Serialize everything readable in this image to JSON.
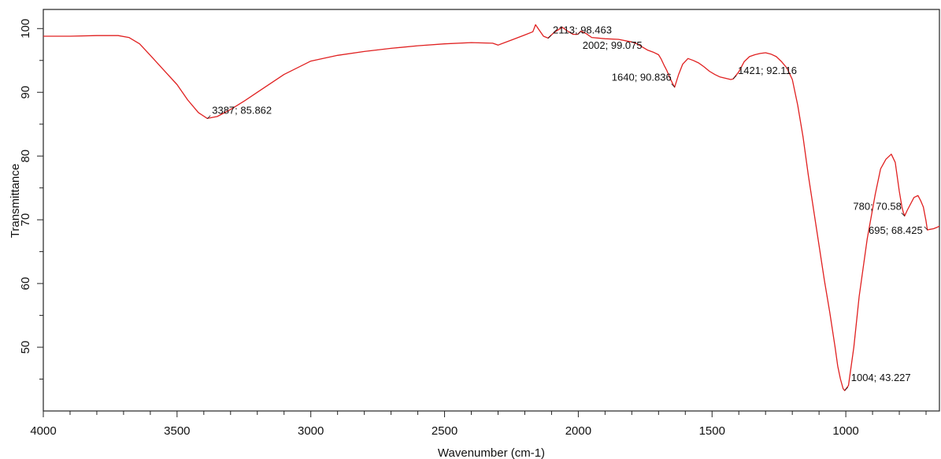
{
  "chart_data": {
    "type": "line",
    "xlabel": "Wavenumber (cm-1)",
    "ylabel": "Transmittance",
    "xlim": [
      4000,
      650
    ],
    "x_reversed": true,
    "ylim": [
      40,
      103
    ],
    "xticks": [
      4000,
      3500,
      3000,
      2500,
      2000,
      1500,
      1000
    ],
    "yticks": [
      50,
      60,
      70,
      80,
      90,
      100
    ],
    "grid": false,
    "line_color": "#e02020",
    "series": [
      {
        "x": [
          4000,
          3900,
          3800,
          3720,
          3680,
          3640,
          3600,
          3550,
          3500,
          3460,
          3420,
          3387,
          3350,
          3300,
          3250,
          3200,
          3100,
          3000,
          2900,
          2800,
          2700,
          2600,
          2500,
          2400,
          2320,
          2300,
          2250,
          2200,
          2170,
          2160,
          2150,
          2130,
          2113,
          2090,
          2060,
          2040,
          2020,
          2002,
          1990,
          1970,
          1950,
          1900,
          1850,
          1800,
          1780,
          1760,
          1740,
          1720,
          1700,
          1690,
          1680,
          1670,
          1660,
          1650,
          1640,
          1625,
          1610,
          1590,
          1570,
          1550,
          1530,
          1510,
          1490,
          1470,
          1450,
          1430,
          1421,
          1400,
          1380,
          1360,
          1340,
          1320,
          1300,
          1280,
          1260,
          1240,
          1220,
          1200,
          1180,
          1160,
          1140,
          1120,
          1100,
          1080,
          1060,
          1040,
          1030,
          1020,
          1010,
          1004,
          990,
          970,
          950,
          920,
          890,
          870,
          850,
          830,
          815,
          800,
          790,
          785,
          780,
          770,
          760,
          745,
          730,
          720,
          710,
          700,
          695,
          685,
          672,
          660,
          650
        ],
        "y": [
          98.8,
          98.8,
          98.9,
          98.9,
          98.6,
          97.6,
          95.8,
          93.5,
          91.2,
          88.8,
          86.8,
          85.9,
          86.2,
          87.3,
          88.6,
          90.0,
          92.8,
          94.9,
          95.8,
          96.4,
          96.9,
          97.3,
          97.6,
          97.8,
          97.7,
          97.4,
          98.2,
          99.0,
          99.5,
          100.6,
          100.0,
          98.8,
          98.5,
          99.4,
          100.2,
          99.6,
          99.1,
          99.1,
          99.6,
          99.2,
          98.6,
          98.4,
          98.3,
          97.9,
          97.6,
          97.1,
          96.6,
          96.3,
          95.9,
          95.2,
          94.3,
          93.5,
          92.5,
          91.6,
          90.8,
          92.8,
          94.4,
          95.3,
          95.0,
          94.6,
          94.0,
          93.3,
          92.8,
          92.4,
          92.2,
          92.0,
          92.1,
          93.2,
          94.8,
          95.6,
          95.9,
          96.1,
          96.2,
          96.0,
          95.6,
          94.8,
          93.8,
          92.0,
          88.0,
          83.0,
          77.0,
          71.5,
          66.0,
          60.5,
          55.5,
          50.0,
          47.0,
          45.0,
          43.5,
          43.2,
          44.0,
          50.0,
          58.0,
          67.0,
          74.0,
          78.0,
          79.5,
          80.3,
          79.0,
          74.5,
          72.0,
          71.2,
          70.6,
          71.5,
          72.3,
          73.5,
          73.8,
          73.0,
          72.0,
          69.8,
          68.4,
          68.5,
          68.6,
          68.8,
          69.0
        ]
      }
    ],
    "annotations": [
      {
        "text": "3387; 85.862",
        "x": 3387,
        "y": 85.862,
        "placement": "upper-right"
      },
      {
        "text": "2113; 98.463",
        "x": 2113,
        "y": 98.463,
        "placement": "upper-right"
      },
      {
        "text": "2002; 99.075",
        "x": 2002,
        "y": 99.075,
        "placement": "lower-right"
      },
      {
        "text": "1640; 90.836",
        "x": 1640,
        "y": 90.836,
        "placement": "upper-left"
      },
      {
        "text": "1421; 92.116",
        "x": 1421,
        "y": 92.116,
        "placement": "upper-right"
      },
      {
        "text": "780; 70.58",
        "x": 780,
        "y": 70.58,
        "placement": "upper-left"
      },
      {
        "text": "695; 68.425",
        "x": 695,
        "y": 68.425,
        "placement": "left"
      },
      {
        "text": "1004; 43.227",
        "x": 1004,
        "y": 43.227,
        "placement": "upper-right"
      }
    ]
  }
}
